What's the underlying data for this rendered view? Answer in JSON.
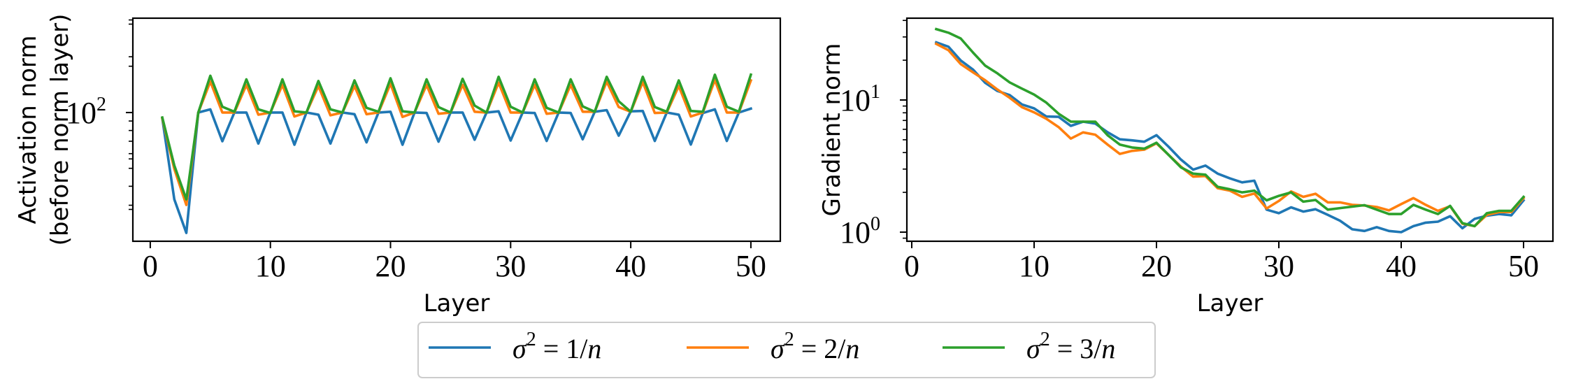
{
  "chart_data": [
    {
      "type": "line",
      "title": "",
      "xlabel": "Layer",
      "ylabel_lines": [
        "Activation norm",
        "(before norm layer)"
      ],
      "yscale": "log",
      "xlim": [
        -1.45,
        52.45
      ],
      "ylim": [
        20.2,
        323
      ],
      "grid": false,
      "xticks": [
        0,
        10,
        20,
        30,
        40,
        50
      ],
      "xtick_labels": [
        "0",
        "10",
        "20",
        "30",
        "40",
        "50"
      ],
      "yticks_major": [
        100
      ],
      "ytick_labels": [
        {
          "base": "10",
          "exp": "2"
        }
      ],
      "yticks_minor": [
        20,
        30,
        31.6,
        40,
        50,
        56.2,
        60,
        70,
        80,
        90,
        177.8,
        200,
        300,
        316
      ],
      "x": [
        1,
        2,
        3,
        4,
        5,
        6,
        7,
        8,
        9,
        10,
        11,
        12,
        13,
        14,
        15,
        16,
        17,
        18,
        19,
        20,
        21,
        22,
        23,
        24,
        25,
        26,
        27,
        28,
        29,
        30,
        31,
        32,
        33,
        34,
        35,
        36,
        37,
        38,
        39,
        40,
        41,
        42,
        43,
        44,
        45,
        46,
        47,
        48,
        49,
        50
      ],
      "series": [
        {
          "name": "σ² = 1/n",
          "color": "#1f77b4",
          "values": [
            93,
            34,
            22.4,
            100,
            104,
            70,
            100,
            100,
            68,
            100,
            100,
            67,
            100,
            97.4,
            68,
            100,
            98,
            69,
            100,
            101,
            67,
            100,
            99.4,
            69.6,
            100,
            100,
            71.3,
            100,
            101.5,
            70.6,
            100,
            99.4,
            70.2,
            100,
            99.4,
            71.7,
            101,
            103,
            75,
            101.5,
            102,
            70.2,
            100,
            97.4,
            67.2,
            99.4,
            104,
            70.2,
            100,
            105
          ]
        },
        {
          "name": "σ² = 2/n",
          "color": "#ff7f0e",
          "values": [
            93,
            49.6,
            31.7,
            100,
            147,
            100,
            100,
            141,
            97.4,
            100,
            141,
            95.2,
            100,
            139,
            96.6,
            100,
            139,
            98,
            100,
            143,
            94.7,
            100,
            141,
            98.5,
            100,
            141,
            101,
            100,
            145,
            100,
            100,
            141,
            98.5,
            100,
            141,
            101,
            101,
            147,
            107,
            101,
            146,
            99.4,
            100,
            139,
            95.2,
            100,
            150,
            100,
            100,
            149
          ]
        },
        {
          "name": "σ² = 3/n",
          "color": "#2ca02c",
          "values": [
            94,
            51.8,
            34,
            100,
            158,
            107.5,
            101,
            151,
            104,
            99.4,
            151,
            101.5,
            100,
            148,
            104,
            100,
            149,
            106,
            101,
            153,
            101.5,
            100,
            151,
            107,
            100,
            152,
            109,
            100,
            156,
            107.5,
            100,
            151,
            106,
            100,
            151,
            108,
            101,
            156,
            115,
            101,
            156,
            107,
            101,
            149,
            102,
            101,
            160,
            107.5,
            101,
            160
          ]
        }
      ]
    },
    {
      "type": "line",
      "title": "",
      "xlabel": "Layer",
      "ylabel_lines": [
        "Gradient norm"
      ],
      "yscale": "log",
      "xlim": [
        -0.4,
        52.4
      ],
      "ylim": [
        0.853,
        41.6
      ],
      "grid": false,
      "xticks": [
        0,
        10,
        20,
        30,
        40,
        50
      ],
      "xtick_labels": [
        "0",
        "10",
        "20",
        "30",
        "40",
        "50"
      ],
      "yticks_major": [
        1,
        10
      ],
      "ytick_labels": [
        {
          "base": "10",
          "exp": "0"
        },
        {
          "base": "10",
          "exp": "1"
        }
      ],
      "yticks_minor": [
        0.9,
        2,
        3,
        4,
        5,
        6,
        7,
        8,
        9,
        20,
        30,
        40
      ],
      "x": [
        2,
        3,
        4,
        5,
        6,
        7,
        8,
        9,
        10,
        11,
        12,
        13,
        14,
        15,
        16,
        17,
        18,
        19,
        20,
        21,
        22,
        23,
        24,
        25,
        26,
        27,
        28,
        29,
        30,
        31,
        32,
        33,
        34,
        35,
        36,
        37,
        38,
        39,
        40,
        41,
        42,
        43,
        44,
        45,
        46,
        47,
        48,
        49,
        50
      ],
      "series": [
        {
          "name": "σ² = 1/n",
          "color": "#1f77b4",
          "values": [
            27.3,
            25.3,
            19.9,
            17.0,
            13.5,
            11.7,
            10.9,
            9.26,
            8.64,
            7.5,
            7.45,
            6.37,
            6.85,
            6.63,
            5.7,
            5.04,
            4.95,
            4.83,
            5.42,
            4.42,
            3.54,
            2.97,
            3.19,
            2.77,
            2.55,
            2.38,
            2.45,
            1.48,
            1.39,
            1.54,
            1.43,
            1.49,
            1.35,
            1.22,
            1.05,
            1.02,
            1.09,
            1.02,
            1.0,
            1.11,
            1.18,
            1.2,
            1.32,
            1.07,
            1.26,
            1.33,
            1.37,
            1.34,
            1.74
          ]
        },
        {
          "name": "σ² = 2/n",
          "color": "#ff7f0e",
          "values": [
            26.6,
            23.8,
            18.7,
            16.2,
            14.1,
            12.0,
            10.4,
            8.83,
            8.06,
            7.2,
            6.24,
            5.1,
            5.69,
            5.46,
            4.6,
            3.91,
            4.12,
            4.21,
            4.7,
            3.83,
            3.13,
            2.63,
            2.66,
            2.15,
            2.06,
            1.85,
            1.96,
            1.51,
            1.72,
            2.03,
            1.85,
            1.95,
            1.68,
            1.68,
            1.61,
            1.59,
            1.55,
            1.46,
            1.63,
            1.81,
            1.61,
            1.45,
            1.57,
            1.16,
            1.11,
            1.35,
            1.42,
            1.42,
            1.81
          ]
        },
        {
          "name": "σ² = 3/n",
          "color": "#2ca02c",
          "values": [
            34.4,
            32.3,
            29.2,
            22.9,
            18.2,
            15.9,
            13.6,
            12.2,
            11.0,
            9.55,
            7.87,
            6.85,
            6.85,
            6.85,
            5.42,
            4.6,
            4.37,
            4.28,
            4.75,
            3.83,
            3.09,
            2.77,
            2.72,
            2.2,
            2.11,
            2.0,
            2.06,
            1.74,
            1.88,
            2.0,
            1.7,
            1.75,
            1.48,
            1.52,
            1.56,
            1.6,
            1.48,
            1.37,
            1.37,
            1.61,
            1.48,
            1.37,
            1.58,
            1.17,
            1.11,
            1.39,
            1.45,
            1.45,
            1.85
          ]
        }
      ]
    }
  ],
  "legend": {
    "placement": "bottom-center",
    "entries": [
      {
        "sym": "σ",
        "sup": "2",
        "eq": " = 1/",
        "var": "n",
        "color": "#1f77b4"
      },
      {
        "sym": "σ",
        "sup": "2",
        "eq": " = 2/",
        "var": "n",
        "color": "#ff7f0e"
      },
      {
        "sym": "σ",
        "sup": "2",
        "eq": " = 3/",
        "var": "n",
        "color": "#2ca02c"
      }
    ]
  }
}
